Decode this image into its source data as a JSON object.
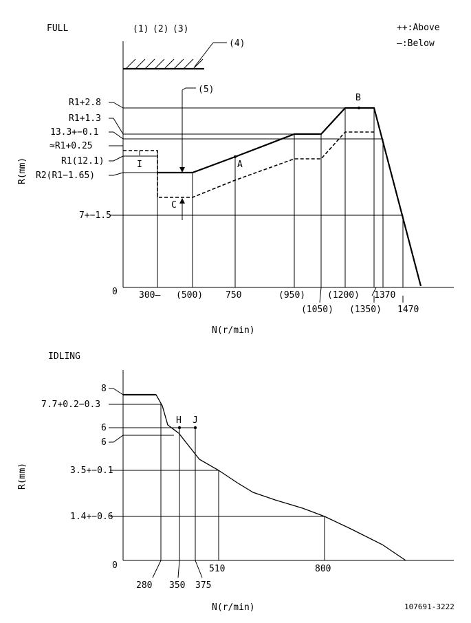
{
  "full": {
    "title": "FULL",
    "markers": [
      "(1)",
      "(2)",
      "(3)"
    ],
    "stop_callout": "(4)",
    "arrow_callout": "(5)",
    "legend": [
      "++:Above",
      "—:Below"
    ],
    "y_axis_label": "R(mm)",
    "x_axis_label": "N(r/min)",
    "origin": "0",
    "y_ticks": [
      "R1+2.8",
      "R1+1.3",
      "13.3+−0.1",
      "≈R1+0.25",
      "R1(12.1)",
      "R2(R1−1.65)",
      "7+−1.5"
    ],
    "x_ticks_top": [
      "300—",
      "(500)",
      "750",
      "(950)",
      "(1200)",
      "1370"
    ],
    "x_ticks_bottom": [
      "(1050)",
      "(1350)",
      "1470"
    ],
    "points": [
      "A",
      "B",
      "C",
      "I"
    ]
  },
  "idling": {
    "title": "IDLING",
    "y_axis_label": "R(mm)",
    "x_axis_label": "N(r/min)",
    "origin": "0",
    "y_ticks": [
      "8",
      "7.7+0.2−0.3",
      "6",
      "6",
      "3.5+−0.1",
      "1.4+−0.6"
    ],
    "x_ticks": [
      "280",
      "350",
      "375",
      "510",
      "800"
    ],
    "points": [
      "H",
      "J"
    ]
  },
  "drawing_number": "107691-3222"
}
